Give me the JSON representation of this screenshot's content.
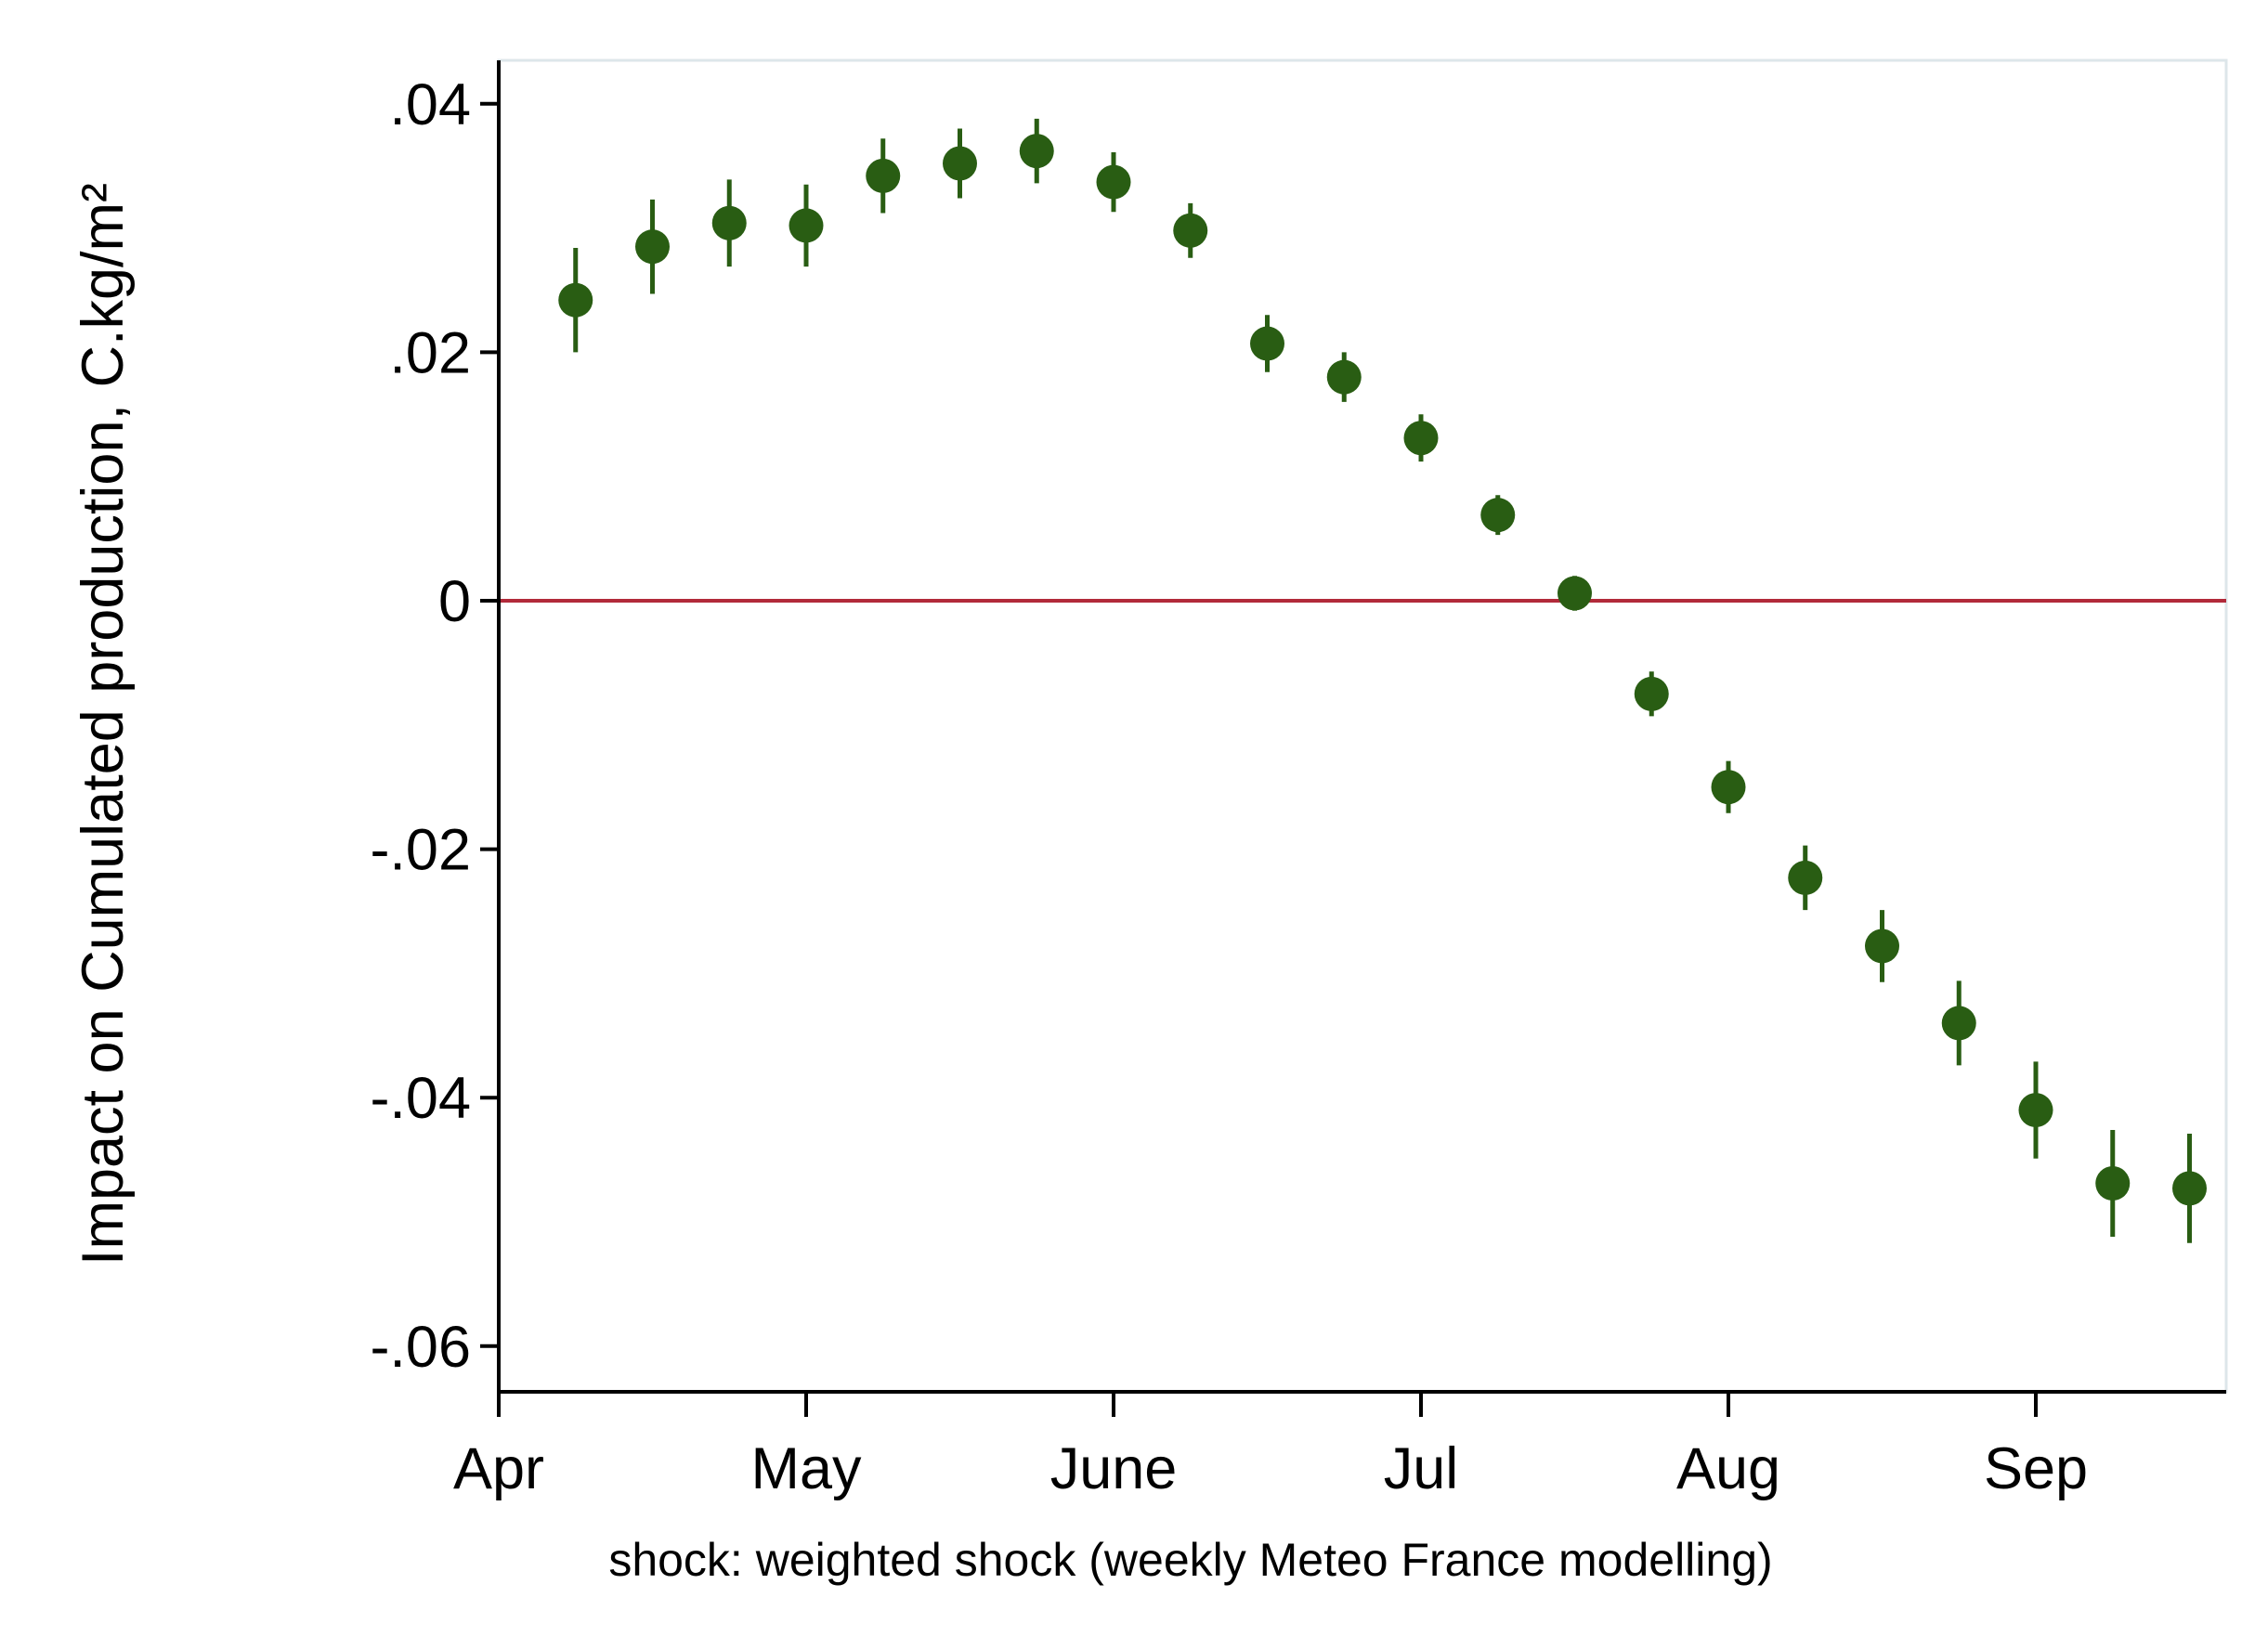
{
  "chart_data": {
    "type": "scatter",
    "ylabel": "Impact on Cumulated production, C.kg/m²",
    "xlabel": "shock: weighted shock (weekly Meteo France modelling)",
    "xlim": [
      "Apr",
      "mid Sep"
    ],
    "ylim": [
      -0.0635,
      0.0435
    ],
    "y_ticks": [
      {
        "value": 0.04,
        "label": ".04"
      },
      {
        "value": 0.02,
        "label": ".02"
      },
      {
        "value": 0,
        "label": "0"
      },
      {
        "value": -0.02,
        "label": "-.02"
      },
      {
        "value": -0.04,
        "label": "-.04"
      },
      {
        "value": -0.06,
        "label": "-.06"
      }
    ],
    "x_ticks": [
      {
        "month": 0,
        "label": "Apr"
      },
      {
        "month": 1,
        "label": "May"
      },
      {
        "month": 2,
        "label": "June"
      },
      {
        "month": 3,
        "label": "Jul"
      },
      {
        "month": 4,
        "label": "Aug"
      },
      {
        "month": 5,
        "label": "Sep"
      }
    ],
    "reference_line": {
      "y": 0,
      "color": "#b22a3a"
    },
    "marker_color": "#295d13",
    "axis_color": "#000000",
    "frame_color": "#dde6ea",
    "grid": false,
    "legend": "none",
    "series": [
      {
        "points": [
          {
            "month": 0.25,
            "estimate": 0.0242,
            "ci_low": 0.02,
            "ci_high": 0.0284
          },
          {
            "month": 0.5,
            "estimate": 0.0285,
            "ci_low": 0.0247,
            "ci_high": 0.0323
          },
          {
            "month": 0.75,
            "estimate": 0.0304,
            "ci_low": 0.0269,
            "ci_high": 0.0339
          },
          {
            "month": 1.0,
            "estimate": 0.0302,
            "ci_low": 0.0269,
            "ci_high": 0.0335
          },
          {
            "month": 1.25,
            "estimate": 0.0342,
            "ci_low": 0.0312,
            "ci_high": 0.0372
          },
          {
            "month": 1.5,
            "estimate": 0.0352,
            "ci_low": 0.0324,
            "ci_high": 0.038
          },
          {
            "month": 1.75,
            "estimate": 0.0362,
            "ci_low": 0.0336,
            "ci_high": 0.0388
          },
          {
            "month": 2.0,
            "estimate": 0.0337,
            "ci_low": 0.0313,
            "ci_high": 0.0361
          },
          {
            "month": 2.25,
            "estimate": 0.0298,
            "ci_low": 0.0276,
            "ci_high": 0.032
          },
          {
            "month": 2.5,
            "estimate": 0.0207,
            "ci_low": 0.0184,
            "ci_high": 0.023
          },
          {
            "month": 2.75,
            "estimate": 0.018,
            "ci_low": 0.016,
            "ci_high": 0.02
          },
          {
            "month": 3.0,
            "estimate": 0.0131,
            "ci_low": 0.0112,
            "ci_high": 0.015
          },
          {
            "month": 3.25,
            "estimate": 0.0069,
            "ci_low": 0.0053,
            "ci_high": 0.0085
          },
          {
            "month": 3.5,
            "estimate": 0.0006,
            "ci_low": -0.0008,
            "ci_high": 0.002
          },
          {
            "month": 3.75,
            "estimate": -0.0075,
            "ci_low": -0.0093,
            "ci_high": -0.0057
          },
          {
            "month": 4.0,
            "estimate": -0.015,
            "ci_low": -0.0171,
            "ci_high": -0.0129
          },
          {
            "month": 4.25,
            "estimate": -0.0223,
            "ci_low": -0.0249,
            "ci_high": -0.0197
          },
          {
            "month": 4.5,
            "estimate": -0.0278,
            "ci_low": -0.0307,
            "ci_high": -0.0249
          },
          {
            "month": 4.75,
            "estimate": -0.034,
            "ci_low": -0.0374,
            "ci_high": -0.0306
          },
          {
            "month": 5.0,
            "estimate": -0.041,
            "ci_low": -0.0449,
            "ci_high": -0.0371
          },
          {
            "month": 5.25,
            "estimate": -0.0469,
            "ci_low": -0.0512,
            "ci_high": -0.0426
          },
          {
            "month": 5.5,
            "estimate": -0.0473,
            "ci_low": -0.0517,
            "ci_high": -0.0429
          }
        ]
      }
    ]
  }
}
